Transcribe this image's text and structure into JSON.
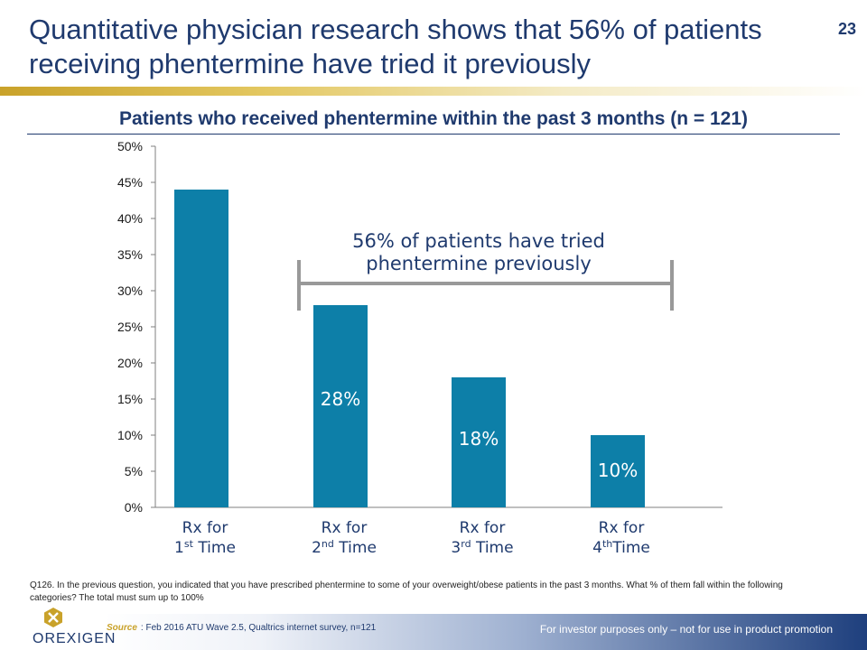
{
  "slide": {
    "title": "Quantitative physician research shows that 56% of patients receiving phentermine have tried it previously",
    "page_number": "23"
  },
  "question_text": "Q126. In the previous question, you indicated that you have prescribed phentermine to some of your overweight/obese patients in the past 3 months. What % of them fall within the following categories? The total must sum up to 100%",
  "footer": {
    "source_label": "Source",
    "source_text": ": Feb 2016 ATU Wave 2.5, Qualtrics internet survey, n=121",
    "disclaimer": "For investor purposes only – not for use in product promotion",
    "logo_text": "OREXIGEN"
  },
  "colors": {
    "bar": "#0d7fa8",
    "title": "#1f3a6e",
    "accent": "#c9a22a"
  },
  "chart_data": {
    "type": "bar",
    "title": "Patients who received phentermine within the past 3 months (n = 121)",
    "categories": [
      {
        "line1": "Rx for",
        "num": "1",
        "sup": "st",
        "rest": " Time"
      },
      {
        "line1": "Rx for",
        "num": "2",
        "sup": "nd",
        "rest": " Time"
      },
      {
        "line1": "Rx for",
        "num": "3",
        "sup": "rd",
        "rest": " Time"
      },
      {
        "line1": "Rx for",
        "num": "4",
        "sup": "th",
        "rest": "Time"
      }
    ],
    "values": [
      44,
      28,
      18,
      10
    ],
    "data_labels": [
      "",
      "28%",
      "18%",
      "10%"
    ],
    "yticks": [
      "0%",
      "5%",
      "10%",
      "15%",
      "20%",
      "25%",
      "30%",
      "35%",
      "40%",
      "45%",
      "50%"
    ],
    "ylim": [
      0,
      50
    ],
    "annotation": {
      "line1": "56% of patients have tried",
      "line2": "phentermine previously"
    },
    "bracket_categories": [
      1,
      3
    ]
  }
}
